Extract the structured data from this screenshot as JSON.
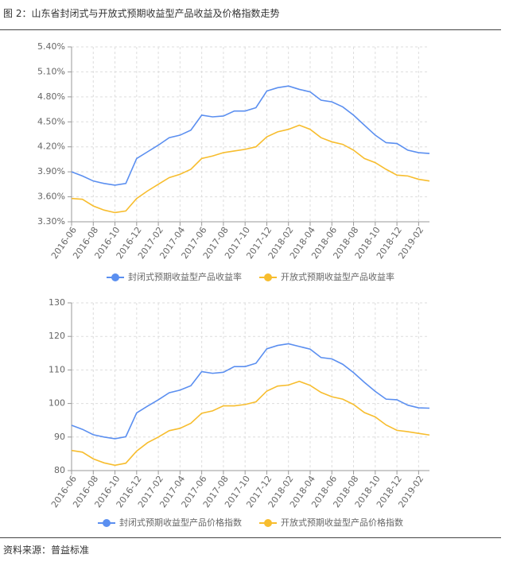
{
  "header": {
    "title": "图 2：山东省封闭式与开放式预期收益型产品收益及价格指数走势"
  },
  "footer": {
    "source": "资料来源：普益标准"
  },
  "chart_data": [
    {
      "type": "line",
      "grid": true,
      "categories": [
        "2016-06",
        null,
        "2016-08",
        null,
        "2016-10",
        null,
        "2016-12",
        null,
        "2017-02",
        null,
        "2017-04",
        null,
        "2017-06",
        null,
        "2017-08",
        null,
        "2017-10",
        null,
        "2017-12",
        null,
        "2018-02",
        null,
        "2018-04",
        null,
        "2018-06",
        null,
        "2018-08",
        null,
        "2018-10",
        null,
        "2018-12",
        null,
        "2019-02",
        null
      ],
      "ylim": [
        3.3,
        5.4
      ],
      "yticks": [
        {
          "value": 3.3,
          "label": "3.30%"
        },
        {
          "value": 3.6,
          "label": "3.60%"
        },
        {
          "value": 3.9,
          "label": "3.90%"
        },
        {
          "value": 4.2,
          "label": "4.20%"
        },
        {
          "value": 4.5,
          "label": "4.50%"
        },
        {
          "value": 4.8,
          "label": "4.80%"
        },
        {
          "value": 5.1,
          "label": "5.10%"
        },
        {
          "value": 5.4,
          "label": "5.40%"
        }
      ],
      "series": [
        {
          "name": "封闭式预期收益型产品收益率",
          "color": "#5b8ff0",
          "values": [
            3.9,
            3.85,
            3.79,
            3.76,
            3.74,
            3.76,
            4.06,
            4.14,
            4.22,
            4.31,
            4.34,
            4.4,
            4.58,
            4.56,
            4.57,
            4.63,
            4.63,
            4.67,
            4.87,
            4.91,
            4.93,
            4.89,
            4.86,
            4.76,
            4.74,
            4.68,
            4.58,
            4.46,
            4.34,
            4.25,
            4.24,
            4.16,
            4.13,
            4.12
          ]
        },
        {
          "name": "开放式预期收益型产品收益率",
          "color": "#f7bd2e",
          "values": [
            3.58,
            3.57,
            3.49,
            3.44,
            3.41,
            3.43,
            3.58,
            3.67,
            3.75,
            3.83,
            3.87,
            3.93,
            4.06,
            4.09,
            4.13,
            4.15,
            4.17,
            4.2,
            4.32,
            4.38,
            4.41,
            4.46,
            4.41,
            4.31,
            4.26,
            4.23,
            4.16,
            4.06,
            4.01,
            3.93,
            3.86,
            3.85,
            3.81,
            3.79
          ]
        }
      ]
    },
    {
      "type": "line",
      "grid": true,
      "categories": [
        "2016-06",
        null,
        "2016-08",
        null,
        "2016-10",
        null,
        "2016-12",
        null,
        "2017-02",
        null,
        "2017-04",
        null,
        "2017-06",
        null,
        "2017-08",
        null,
        "2017-10",
        null,
        "2017-12",
        null,
        "2018-02",
        null,
        "2018-04",
        null,
        "2018-06",
        null,
        "2018-08",
        null,
        "2018-10",
        null,
        "2018-12",
        null,
        "2019-02",
        null
      ],
      "ylim": [
        80,
        130
      ],
      "yticks": [
        80,
        90,
        100,
        110,
        120,
        130
      ],
      "series": [
        {
          "name": "封闭式预期收益型产品价格指数",
          "color": "#5b8ff0",
          "values": [
            93.5,
            92.3,
            90.7,
            90.0,
            89.5,
            90.1,
            97.2,
            99.2,
            101.1,
            103.2,
            104.0,
            105.3,
            109.5,
            109.0,
            109.3,
            111.0,
            111.0,
            112.0,
            116.3,
            117.3,
            117.8,
            117.0,
            116.2,
            113.7,
            113.3,
            111.7,
            109.2,
            106.3,
            103.6,
            101.3,
            101.1,
            99.5,
            98.7,
            98.6
          ]
        },
        {
          "name": "开放式预期收益型产品价格指数",
          "color": "#f7bd2e",
          "values": [
            86.0,
            85.5,
            83.5,
            82.3,
            81.6,
            82.2,
            85.8,
            88.3,
            90.0,
            91.9,
            92.6,
            94.1,
            97.1,
            97.8,
            99.3,
            99.3,
            99.7,
            100.5,
            103.7,
            105.2,
            105.5,
            106.6,
            105.4,
            103.3,
            102.0,
            101.3,
            99.7,
            97.3,
            96.0,
            93.6,
            92.0,
            91.6,
            91.1,
            90.6
          ]
        }
      ]
    }
  ]
}
